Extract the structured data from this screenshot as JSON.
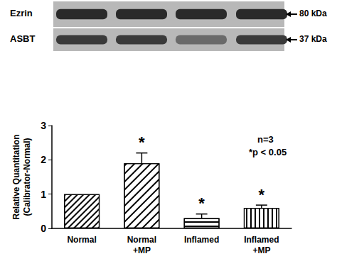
{
  "chart_data": {
    "type": "bar",
    "categories": [
      "Normal",
      "Normal +MP",
      "Inflamed",
      "Inflamed +MP"
    ],
    "values": [
      1.0,
      1.9,
      0.3,
      0.6
    ],
    "errors": [
      null,
      0.3,
      0.12,
      0.08
    ],
    "significance_labels": [
      null,
      "*",
      "*",
      "*"
    ],
    "y_label": "Relative Quantitation (Calibrator-Normal)",
    "ylim": [
      0,
      3
    ],
    "yticks": [
      0,
      1,
      2,
      3
    ],
    "grid": false,
    "color": "#000000",
    "annotations": [
      "n=3",
      "*p < 0.05"
    ],
    "blot_labels": [
      {
        "protein": "Ezrin",
        "size": "80 kDa"
      },
      {
        "protein": "ASBT",
        "size": "37 kDa"
      }
    ]
  }
}
